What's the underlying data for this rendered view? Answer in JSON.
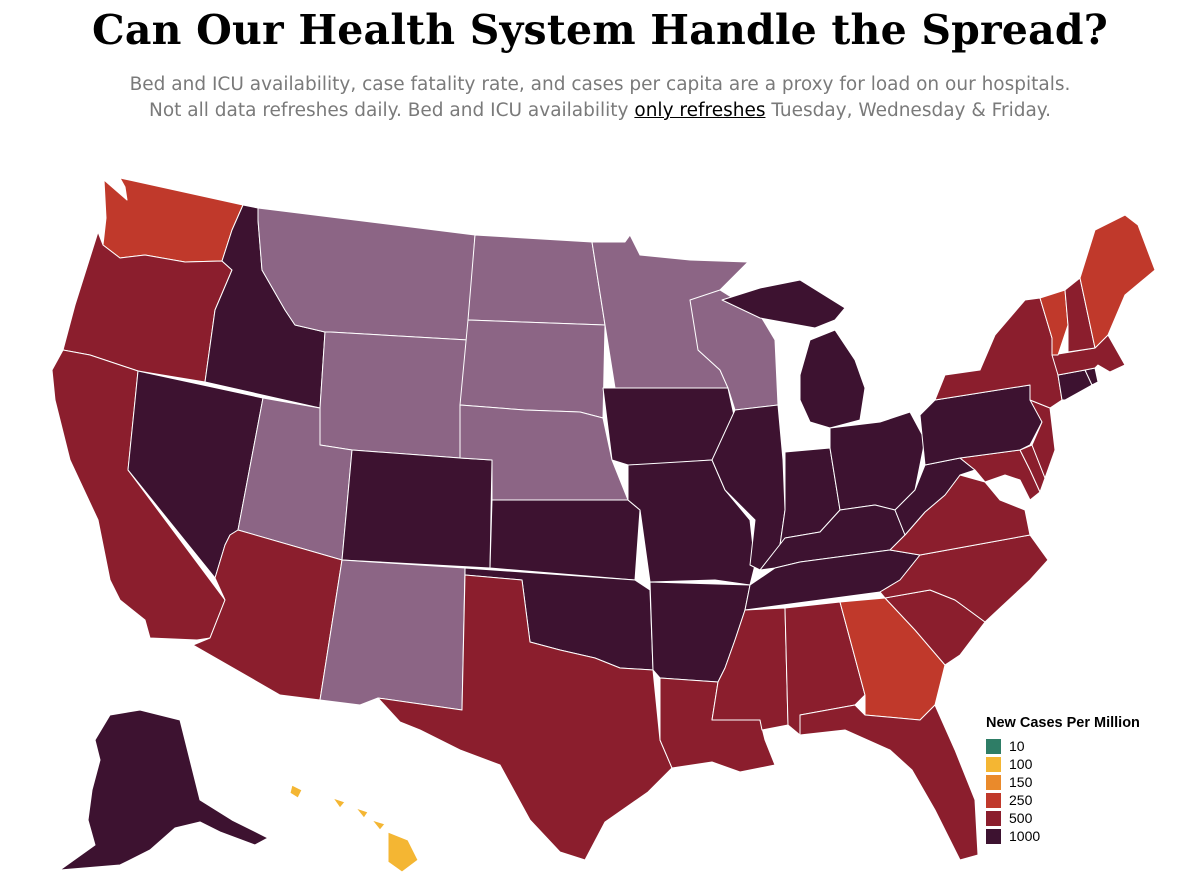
{
  "header": {
    "title": "Can Our Health System Handle the Spread?",
    "subtitle_line1": "Bed and ICU availability, case fatality rate, and cases per capita are a proxy for load on our hospitals.",
    "subtitle_line2_before": "Not all data refreshes daily. Bed and ICU availability ",
    "subtitle_link": "only refreshes",
    "subtitle_line2_after": " Tuesday, Wednesday & Friday."
  },
  "legend": {
    "title": "New Cases Per Million",
    "items": [
      {
        "label": "10",
        "color": "#2e7d66"
      },
      {
        "label": "100",
        "color": "#f4b633"
      },
      {
        "label": "150",
        "color": "#ea8a2b"
      },
      {
        "label": "250",
        "color": "#c0392b"
      },
      {
        "label": "500",
        "color": "#8b1e2d"
      },
      {
        "label": "1000",
        "color": "#3d1230"
      }
    ],
    "extra_color": "#8c6585"
  },
  "map_data": {
    "categories": {
      "purple": "#8c6585",
      "dark": "#3d1230",
      "crimson": "#8b1e2d",
      "red": "#c0392b",
      "yellow": "#f4b633"
    },
    "states": [
      {
        "id": "WA",
        "category": "red"
      },
      {
        "id": "OR",
        "category": "crimson"
      },
      {
        "id": "CA",
        "category": "crimson"
      },
      {
        "id": "ID",
        "category": "dark"
      },
      {
        "id": "NV",
        "category": "dark"
      },
      {
        "id": "MT",
        "category": "purple"
      },
      {
        "id": "WY",
        "category": "purple"
      },
      {
        "id": "UT",
        "category": "purple"
      },
      {
        "id": "AZ",
        "category": "crimson"
      },
      {
        "id": "CO",
        "category": "dark"
      },
      {
        "id": "NM",
        "category": "purple"
      },
      {
        "id": "ND",
        "category": "purple"
      },
      {
        "id": "SD",
        "category": "purple"
      },
      {
        "id": "NE",
        "category": "purple"
      },
      {
        "id": "KS",
        "category": "dark"
      },
      {
        "id": "OK",
        "category": "dark"
      },
      {
        "id": "TX",
        "category": "crimson"
      },
      {
        "id": "MN",
        "category": "purple"
      },
      {
        "id": "IA",
        "category": "dark"
      },
      {
        "id": "MO",
        "category": "dark"
      },
      {
        "id": "AR",
        "category": "dark"
      },
      {
        "id": "LA",
        "category": "crimson"
      },
      {
        "id": "WI",
        "category": "purple"
      },
      {
        "id": "IL",
        "category": "dark"
      },
      {
        "id": "MI",
        "category": "dark"
      },
      {
        "id": "IN",
        "category": "dark"
      },
      {
        "id": "OH",
        "category": "dark"
      },
      {
        "id": "KY",
        "category": "dark"
      },
      {
        "id": "TN",
        "category": "dark"
      },
      {
        "id": "MS",
        "category": "crimson"
      },
      {
        "id": "AL",
        "category": "crimson"
      },
      {
        "id": "GA",
        "category": "red"
      },
      {
        "id": "FL",
        "category": "crimson"
      },
      {
        "id": "SC",
        "category": "crimson"
      },
      {
        "id": "NC",
        "category": "crimson"
      },
      {
        "id": "VA",
        "category": "crimson"
      },
      {
        "id": "WV",
        "category": "dark"
      },
      {
        "id": "PA",
        "category": "dark"
      },
      {
        "id": "NY",
        "category": "crimson"
      },
      {
        "id": "NJ",
        "category": "crimson"
      },
      {
        "id": "DE",
        "category": "crimson"
      },
      {
        "id": "MD",
        "category": "crimson"
      },
      {
        "id": "CT",
        "category": "dark"
      },
      {
        "id": "RI",
        "category": "dark"
      },
      {
        "id": "MA",
        "category": "crimson"
      },
      {
        "id": "VT",
        "category": "red"
      },
      {
        "id": "NH",
        "category": "crimson"
      },
      {
        "id": "ME",
        "category": "red"
      },
      {
        "id": "AK",
        "category": "dark"
      },
      {
        "id": "HI",
        "category": "yellow"
      }
    ]
  }
}
